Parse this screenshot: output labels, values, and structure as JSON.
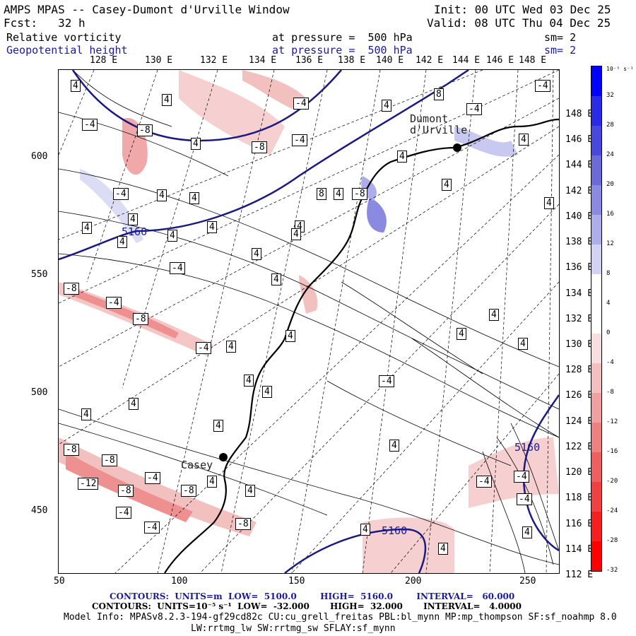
{
  "header": {
    "title": "AMPS MPAS -- Casey-Dumont d'Urville Window",
    "init": "Init: 00 UTC Wed 03 Dec 25",
    "fcst": "Fcst:   32 h",
    "valid": "Valid: 08 UTC Thu 04 Dec 25",
    "field1": "Relative vorticity",
    "field1_level": "at pressure =  500 hPa",
    "field1_sm": "sm= 2",
    "field2": "Geopotential height",
    "field2_level": "at pressure =  500 hPa",
    "field2_sm": "sm= 2"
  },
  "top_lon_labels": [
    "128 E",
    "130 E",
    "132 E",
    "134 E",
    "136 E",
    "138 E",
    "140 E",
    "142 E",
    "144 E",
    "146 E",
    "148 E"
  ],
  "right_lat_labels": [
    "148 E",
    "146 E",
    "144 E",
    "142 E",
    "140 E",
    "138 E",
    "136 E",
    "134 E",
    "132 E",
    "130 E",
    "128 E",
    "126 E",
    "124 E",
    "122 E",
    "120 E",
    "118 E",
    "116 E",
    "114 E",
    "112 E"
  ],
  "x_ticks": [
    "50",
    "100",
    "150",
    "200",
    "250"
  ],
  "y_ticks": [
    "600",
    "550",
    "500",
    "450"
  ],
  "places": {
    "casey": "Casey",
    "dumont": "Dumont\nd'Urville"
  },
  "contour_labels": {
    "vort": [
      "4",
      "-4",
      "4",
      "-4",
      "4",
      "-8",
      "-4",
      "8",
      "-4",
      "4",
      "-8",
      "4",
      "-4",
      "4",
      "4",
      "4",
      "-4",
      "4",
      "4",
      "8",
      "4",
      "-8",
      "4",
      "4",
      "4",
      "4",
      "4",
      "4",
      "-8",
      "-4",
      "-8",
      "-4",
      "4",
      "4",
      "4",
      "4",
      "4",
      "4",
      "4",
      "-4",
      "4",
      "4",
      "-8",
      "-8",
      "-12",
      "-8",
      "-4",
      "-8",
      "-4",
      "4",
      "-4",
      "4",
      "-8",
      "4",
      "-4",
      "-4",
      "-4",
      "4",
      "4",
      "4",
      "4",
      "4",
      "-4",
      "4",
      "4"
    ],
    "gh": [
      "5160",
      "5160",
      "5160"
    ]
  },
  "colorbar": {
    "unit_label": "10⁻⁵ s⁻¹",
    "labels": [
      "32",
      "28",
      "24",
      "20",
      "16",
      "12",
      "8",
      "4",
      "0",
      "-4",
      "-8",
      "-12",
      "-16",
      "-20",
      "-24",
      "-28",
      "-32"
    ],
    "colors": [
      "#0000ff",
      "#2a2ae8",
      "#4848dc",
      "#6a6ad8",
      "#8a8ae0",
      "#adadea",
      "#d2d2f4",
      "#ffffff",
      "#ffffff",
      "#f8dede",
      "#f3c0c0",
      "#f0a0a0",
      "#ee8080",
      "#ee6060",
      "#f04040",
      "#f42020",
      "#ff0000"
    ]
  },
  "footer": {
    "line1": "CONTOURS:  UNITS=m  LOW=  5100.0        HIGH=  5160.0        INTERVAL=   60.000",
    "line2": "CONTOURS:  UNITS=10⁻⁵ s⁻¹  LOW=  -32.000       HIGH=  32.000       INTERVAL=   4.0000",
    "line3": "Model Info: MPASv8.2.3-194-gf29cd82c CU:cu_grell_freitas PBL:bl_mynn MP:mp_thompson SF:sf_noahmp 8.0",
    "line4": "LW:rrtmg_lw SW:rrtmg_sw SFLAY:sf_mynn"
  }
}
